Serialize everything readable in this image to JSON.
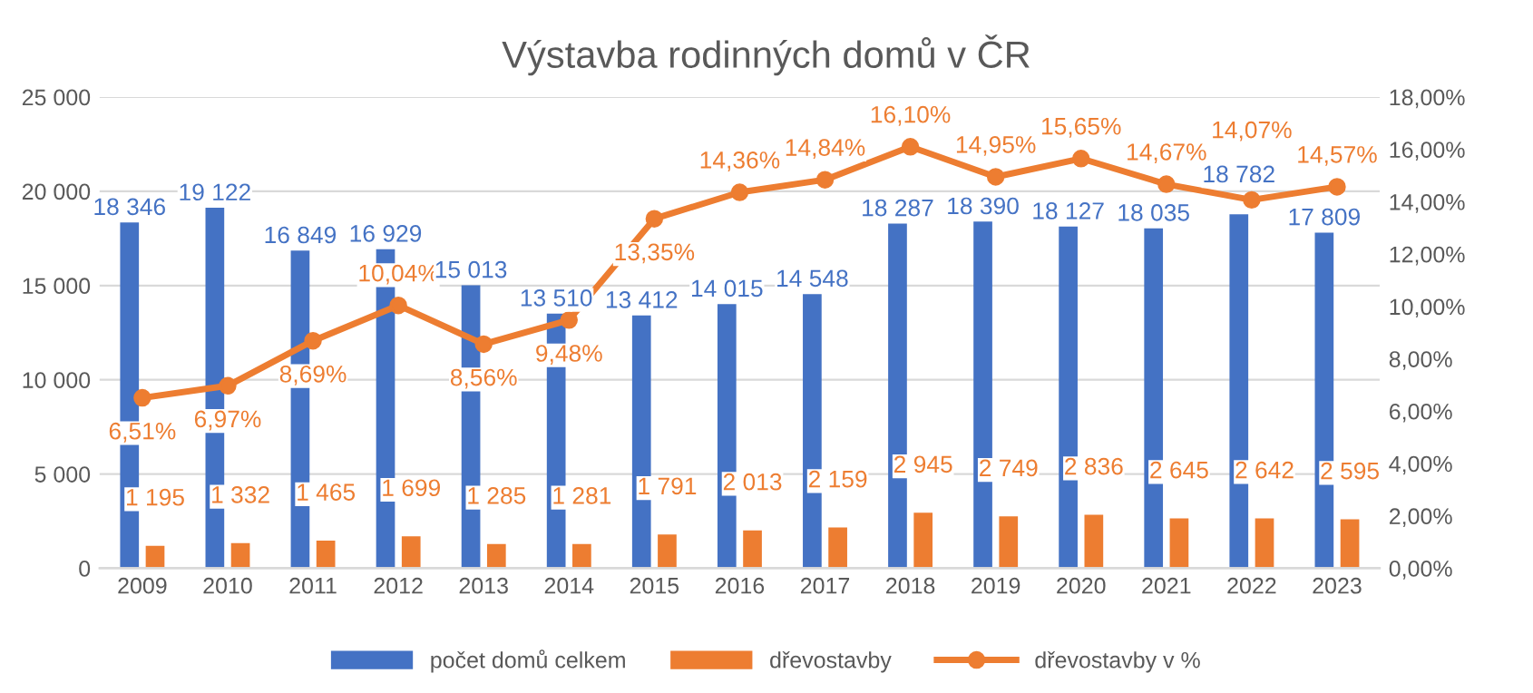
{
  "chart_data": {
    "type": "bar",
    "title": "Výstavba rodinných domů v ČR",
    "categories": [
      "2009",
      "2010",
      "2011",
      "2012",
      "2013",
      "2014",
      "2015",
      "2016",
      "2017",
      "2018",
      "2019",
      "2020",
      "2021",
      "2022",
      "2023"
    ],
    "series": [
      {
        "name": "počet domů celkem",
        "type": "bar",
        "color": "#4472c4",
        "values": [
          18346,
          19122,
          16849,
          16929,
          15013,
          13510,
          13412,
          14015,
          14548,
          18287,
          18390,
          18127,
          18035,
          18782,
          17809
        ],
        "value_labels": [
          "18 346",
          "19 122",
          "16 849",
          "16 929",
          "15 013",
          "13 510",
          "13 412",
          "14 015",
          "14 548",
          "18 287",
          "18 390",
          "18 127",
          "18 035",
          "18 782",
          "17 809"
        ]
      },
      {
        "name": "dřevostavby",
        "type": "bar",
        "color": "#ed7d31",
        "values": [
          1195,
          1332,
          1465,
          1699,
          1285,
          1281,
          1791,
          2013,
          2159,
          2945,
          2749,
          2836,
          2645,
          2642,
          2595
        ],
        "value_labels": [
          "1 195",
          "1 332",
          "1 465",
          "1 699",
          "1 285",
          "1 281",
          "1 791",
          "2 013",
          "2 159",
          "2 945",
          "2 749",
          "2 836",
          "2 645",
          "2 642",
          "2 595"
        ]
      },
      {
        "name": "dřevostavby v %",
        "type": "line",
        "axis": "y2",
        "marker": "circle",
        "color": "#ed7d31",
        "values": [
          6.51,
          6.97,
          8.69,
          10.04,
          8.56,
          9.48,
          13.35,
          14.36,
          14.84,
          16.1,
          14.95,
          15.65,
          14.67,
          14.07,
          14.57
        ],
        "value_labels": [
          "6,51%",
          "6,97%",
          "8,69%",
          "10,04%",
          "8,56%",
          "9,48%",
          "13,35%",
          "14,36%",
          "14,84%",
          "16,10%",
          "14,95%",
          "15,65%",
          "14,67%",
          "14,07%",
          "14,57%"
        ]
      }
    ],
    "ylim": [
      0,
      25000
    ],
    "yticks": [
      {
        "value": 0,
        "label": "0"
      },
      {
        "value": 5000,
        "label": "5 000"
      },
      {
        "value": 10000,
        "label": "10 000"
      },
      {
        "value": 15000,
        "label": "15 000"
      },
      {
        "value": 20000,
        "label": "20 000"
      },
      {
        "value": 25000,
        "label": "25 000"
      }
    ],
    "y2lim": [
      0,
      18
    ],
    "y2ticks": [
      {
        "value": 0,
        "label": "0,00%"
      },
      {
        "value": 2,
        "label": "2,00%"
      },
      {
        "value": 4,
        "label": "4,00%"
      },
      {
        "value": 6,
        "label": "6,00%"
      },
      {
        "value": 8,
        "label": "8,00%"
      },
      {
        "value": 10,
        "label": "10,00%"
      },
      {
        "value": 12,
        "label": "12,00%"
      },
      {
        "value": 14,
        "label": "14,00%"
      },
      {
        "value": 16,
        "label": "16,00%"
      },
      {
        "value": 18,
        "label": "18,00%"
      }
    ],
    "grid": "y",
    "legend": "bottom"
  }
}
